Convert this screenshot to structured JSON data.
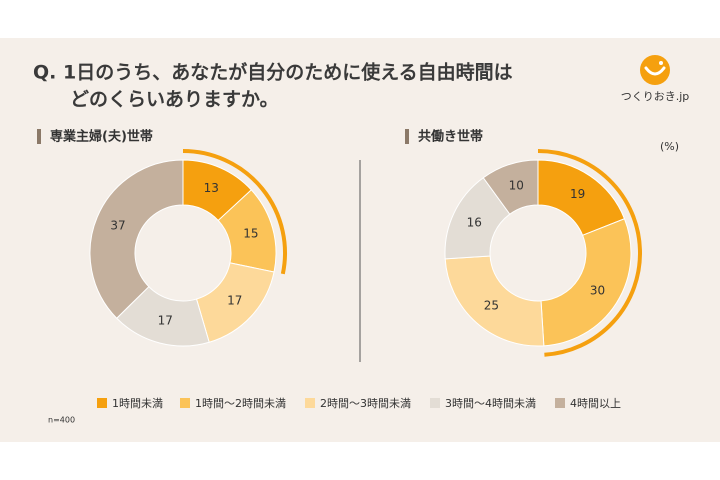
{
  "title": [
    "Q. 1日のうち、あなたが自分のために使える自由時間は",
    "どのくらいありますか。"
  ],
  "logo": "つくりおき.jp",
  "unit": "(%)",
  "note": "n=400",
  "chart_data": [
    {
      "type": "pie",
      "title": "専業主婦(夫)世帯",
      "categories": [
        "1時間未満",
        "1時間～2時間未満",
        "2時間～3時間未満",
        "3時間～4時間未満",
        "4時間以上"
      ],
      "values": [
        13,
        15,
        17,
        17,
        37
      ],
      "colors": [
        "#f5a00f",
        "#fbc358",
        "#fdd99a",
        "#e3ddd5",
        "#c4b09d"
      ]
    },
    {
      "type": "pie",
      "title": "共働き世帯",
      "categories": [
        "1時間未満",
        "1時間～2時間未満",
        "2時間～3時間未満",
        "3時間～4時間未満",
        "4時間以上"
      ],
      "values": [
        19,
        30,
        25,
        16,
        10
      ],
      "colors": [
        "#f5a00f",
        "#fbc358",
        "#fdd99a",
        "#e3ddd5",
        "#c4b09d"
      ]
    }
  ]
}
